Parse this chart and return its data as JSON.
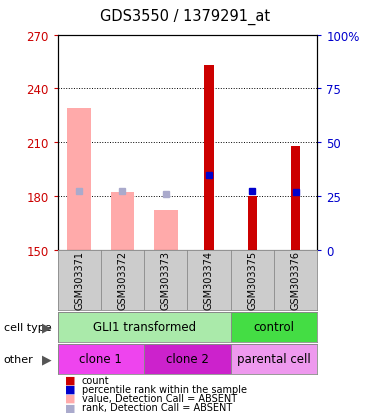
{
  "title": "GDS3550 / 1379291_at",
  "samples": [
    "GSM303371",
    "GSM303372",
    "GSM303373",
    "GSM303374",
    "GSM303375",
    "GSM303376"
  ],
  "ylim": [
    150,
    270
  ],
  "yticks_left": [
    150,
    180,
    210,
    240,
    270
  ],
  "yticks_right_labels": [
    "0",
    "25",
    "50",
    "75",
    "100%"
  ],
  "yticks_right_pos": [
    150,
    180,
    210,
    240,
    270
  ],
  "bar_values": [
    null,
    null,
    null,
    253,
    180,
    208
  ],
  "bar_color_present": "#cc0000",
  "rank_values": [
    183,
    183,
    181,
    192,
    183,
    182
  ],
  "rank_absent_color": "#aaaacc",
  "rank_present_color": "#0000cc",
  "value_absent": [
    229,
    182,
    172,
    null,
    null,
    null
  ],
  "value_absent_color": "#ffaaaa",
  "bar_bottom": 150,
  "cell_type_groups": [
    {
      "label": "GLI1 transformed",
      "start": 0,
      "end": 3,
      "color": "#aaeaaa"
    },
    {
      "label": "control",
      "start": 4,
      "end": 5,
      "color": "#44dd44"
    }
  ],
  "other_groups": [
    {
      "label": "clone 1",
      "start": 0,
      "end": 1,
      "color": "#ee44ee"
    },
    {
      "label": "clone 2",
      "start": 2,
      "end": 3,
      "color": "#cc22cc"
    },
    {
      "label": "parental cell",
      "start": 4,
      "end": 5,
      "color": "#ee99ee"
    }
  ],
  "legend_items": [
    {
      "color": "#cc0000",
      "label": "count"
    },
    {
      "color": "#0000cc",
      "label": "percentile rank within the sample"
    },
    {
      "color": "#ffaaaa",
      "label": "value, Detection Call = ABSENT"
    },
    {
      "color": "#aaaacc",
      "label": "rank, Detection Call = ABSENT"
    }
  ],
  "left_color": "#cc0000",
  "right_color": "#0000cc",
  "bg_color": "#ffffff",
  "sample_bg_color": "#cccccc",
  "grid_color": "#000000"
}
